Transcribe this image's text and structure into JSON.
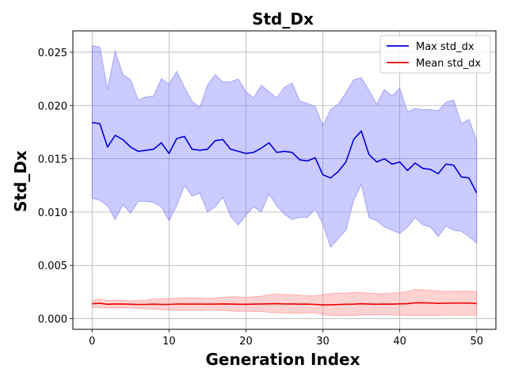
{
  "chart_data": {
    "type": "line",
    "title": "Std_Dx",
    "xlabel": "Generation Index",
    "ylabel": "Std_Dx",
    "xlim": [
      -2.5,
      52.5
    ],
    "ylim": [
      -0.001,
      0.027
    ],
    "xticks": [
      0,
      10,
      20,
      30,
      40,
      50
    ],
    "xtick_labels": [
      "0",
      "10",
      "20",
      "30",
      "40",
      "50"
    ],
    "yticks": [
      0.0,
      0.005,
      0.01,
      0.015,
      0.02,
      0.025
    ],
    "ytick_labels": [
      "0.000",
      "0.005",
      "0.010",
      "0.015",
      "0.020",
      "0.025"
    ],
    "grid": true,
    "legend_position": "top-right",
    "x": [
      0,
      1,
      2,
      3,
      4,
      5,
      6,
      7,
      8,
      9,
      10,
      11,
      12,
      13,
      14,
      15,
      16,
      17,
      18,
      19,
      20,
      21,
      22,
      23,
      24,
      25,
      26,
      27,
      28,
      29,
      30,
      31,
      32,
      33,
      34,
      35,
      36,
      37,
      38,
      39,
      40,
      41,
      42,
      43,
      44,
      45,
      46,
      47,
      48,
      49,
      50
    ],
    "series": [
      {
        "name": "Max std_dx",
        "color": "#0000dd",
        "band_color": "#7777ff",
        "values": [
          0.0184,
          0.0183,
          0.0161,
          0.0172,
          0.0168,
          0.0161,
          0.0157,
          0.0158,
          0.0159,
          0.0165,
          0.0155,
          0.0169,
          0.0171,
          0.0159,
          0.0158,
          0.0159,
          0.0167,
          0.0168,
          0.0159,
          0.0157,
          0.0155,
          0.0156,
          0.016,
          0.0165,
          0.0156,
          0.0157,
          0.0156,
          0.0149,
          0.0148,
          0.0151,
          0.0135,
          0.0132,
          0.0138,
          0.0147,
          0.0168,
          0.0176,
          0.0154,
          0.0147,
          0.015,
          0.0145,
          0.0147,
          0.0139,
          0.0146,
          0.0141,
          0.014,
          0.0136,
          0.0145,
          0.0144,
          0.0133,
          0.0132,
          0.0118
        ],
        "upper": [
          0.0256,
          0.0255,
          0.0215,
          0.0251,
          0.0229,
          0.0224,
          0.0205,
          0.0208,
          0.0209,
          0.0225,
          0.022,
          0.0232,
          0.0217,
          0.0204,
          0.0198,
          0.0219,
          0.0229,
          0.0222,
          0.0222,
          0.0225,
          0.0213,
          0.0207,
          0.0219,
          0.0213,
          0.0207,
          0.0217,
          0.0221,
          0.0204,
          0.0202,
          0.0199,
          0.0181,
          0.0196,
          0.0201,
          0.0212,
          0.0224,
          0.0226,
          0.0214,
          0.0201,
          0.0215,
          0.0209,
          0.0216,
          0.0194,
          0.0197,
          0.0196,
          0.0196,
          0.0195,
          0.0203,
          0.0205,
          0.0183,
          0.0187,
          0.0167
        ],
        "lower": [
          0.0113,
          0.0111,
          0.0106,
          0.0093,
          0.0107,
          0.0099,
          0.011,
          0.011,
          0.0109,
          0.0105,
          0.0092,
          0.0106,
          0.0125,
          0.0115,
          0.0118,
          0.01,
          0.0105,
          0.0114,
          0.0096,
          0.0088,
          0.0097,
          0.0105,
          0.01,
          0.0117,
          0.0106,
          0.0098,
          0.0093,
          0.0095,
          0.0095,
          0.0103,
          0.0089,
          0.0067,
          0.0075,
          0.0083,
          0.0111,
          0.0126,
          0.0095,
          0.0092,
          0.0086,
          0.0083,
          0.008,
          0.0086,
          0.0095,
          0.0088,
          0.0086,
          0.0077,
          0.0087,
          0.0083,
          0.0082,
          0.0077,
          0.0071
        ]
      },
      {
        "name": "Mean std_dx",
        "color": "#ee0000",
        "band_color": "#ff8888",
        "values": [
          0.0014,
          0.00145,
          0.00135,
          0.00138,
          0.00137,
          0.00135,
          0.00133,
          0.00134,
          0.00136,
          0.00134,
          0.00134,
          0.00137,
          0.00137,
          0.00136,
          0.00137,
          0.00136,
          0.00137,
          0.00138,
          0.00137,
          0.00135,
          0.00135,
          0.00136,
          0.00138,
          0.00139,
          0.00141,
          0.00138,
          0.00138,
          0.00136,
          0.00136,
          0.00134,
          0.0013,
          0.0013,
          0.00133,
          0.00135,
          0.00136,
          0.0014,
          0.00137,
          0.00135,
          0.00137,
          0.00136,
          0.00139,
          0.00141,
          0.00148,
          0.00149,
          0.00147,
          0.00144,
          0.00145,
          0.00146,
          0.00146,
          0.00146,
          0.00142
        ],
        "upper": [
          0.00175,
          0.00185,
          0.0017,
          0.00175,
          0.00172,
          0.00168,
          0.0017,
          0.00175,
          0.00185,
          0.00185,
          0.0019,
          0.00192,
          0.00195,
          0.00195,
          0.00195,
          0.0019,
          0.00192,
          0.002,
          0.00205,
          0.00205,
          0.002,
          0.00205,
          0.0021,
          0.00225,
          0.0023,
          0.00225,
          0.00225,
          0.0022,
          0.00215,
          0.00215,
          0.00225,
          0.00235,
          0.0024,
          0.0024,
          0.00245,
          0.00245,
          0.0024,
          0.00235,
          0.00235,
          0.0024,
          0.00245,
          0.00255,
          0.00275,
          0.0027,
          0.00265,
          0.0026,
          0.00255,
          0.00258,
          0.00258,
          0.0026,
          0.00252
        ],
        "lower": [
          0.00105,
          0.00105,
          0.001,
          0.001,
          0.00102,
          0.001,
          0.00098,
          0.00093,
          0.0009,
          0.00085,
          0.0008,
          0.00082,
          0.0008,
          0.00078,
          0.00078,
          0.0008,
          0.0008,
          0.00078,
          0.00072,
          0.00068,
          0.0007,
          0.00068,
          0.00068,
          0.0006,
          0.00055,
          0.00055,
          0.00052,
          0.00052,
          0.00055,
          0.00055,
          0.00038,
          0.0003,
          0.00028,
          0.0003,
          0.0003,
          0.00035,
          0.00035,
          0.00035,
          0.00038,
          0.00034,
          0.00033,
          0.0003,
          0.0003,
          0.0003,
          0.0003,
          0.0003,
          0.00035,
          0.00033,
          0.00033,
          0.00033,
          0.00032
        ]
      }
    ]
  }
}
